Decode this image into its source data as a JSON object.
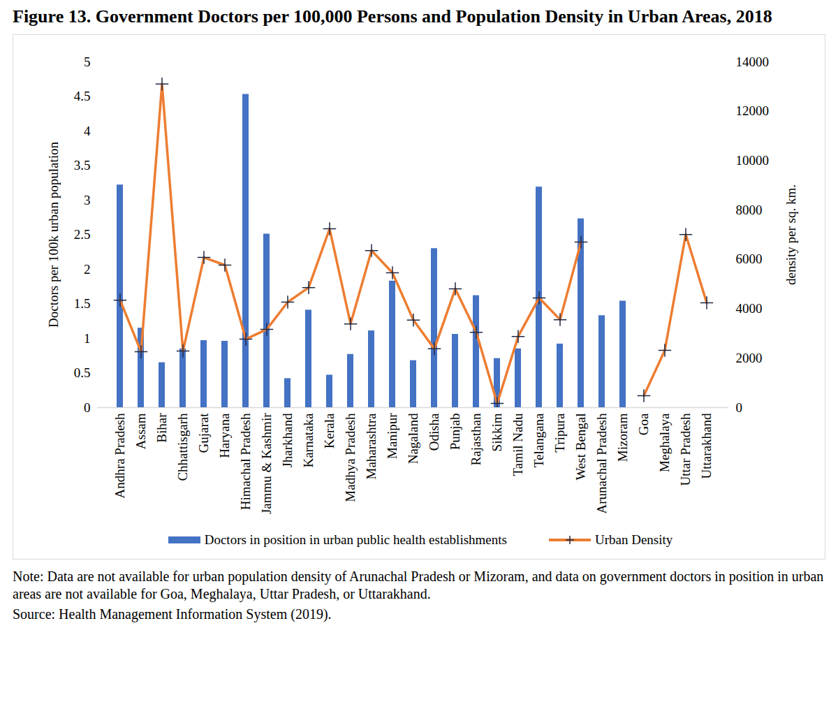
{
  "chart_data": {
    "type": "bar",
    "title": "Figure 13. Government Doctors per 100,000 Persons and Population Density in Urban Areas, 2018",
    "note": "Note: Data are not available for urban population density of Arunachal Pradesh or Mizoram, and data on government doctors in position in urban areas are not available for Goa, Meghalaya, Uttar Pradesh, or Uttarakhand.",
    "source": "Source: Health Management Information System (2019).",
    "categories": [
      "Andhra Pradesh",
      "Assam",
      "Bihar",
      "Chhattisgarh",
      "Gujarat",
      "Haryana",
      "Himachal Pradesh",
      "Jammu & Kashmir",
      "Jharkhand",
      "Karnataka",
      "Kerala",
      "Madhya Pradesh",
      "Maharashtra",
      "Manipur",
      "Nagaland",
      "Odisha",
      "Punjab",
      "Rajasthan",
      "Sikkim",
      "Tamil Nadu",
      "Telangana",
      "Tripura",
      "West Bengal",
      "Arunachal Pradesh",
      "Mizoram",
      "Goa",
      "Meghalaya",
      "Uttar Pradesh",
      "Uttarakhand"
    ],
    "series": [
      {
        "name": "Doctors in position in urban public health establishments",
        "type": "bar",
        "color": "#4472c4",
        "values": [
          3.22,
          1.15,
          0.65,
          0.85,
          0.97,
          0.96,
          4.53,
          2.51,
          0.42,
          1.41,
          0.47,
          0.77,
          1.11,
          1.83,
          0.68,
          2.3,
          1.06,
          1.62,
          0.71,
          0.85,
          3.19,
          0.92,
          2.73,
          1.33,
          1.54,
          null,
          null,
          null,
          null
        ]
      },
      {
        "name": "Urban Density",
        "type": "line",
        "color": "#ed7d31",
        "marker": "plus",
        "axis": "y2",
        "values": [
          4350,
          2260,
          13100,
          2290,
          6080,
          5770,
          2770,
          3170,
          4270,
          4860,
          7240,
          3390,
          6360,
          5460,
          3540,
          2380,
          4810,
          3050,
          170,
          2880,
          4440,
          3560,
          6700,
          null,
          null,
          480,
          2320,
          7010,
          4240
        ]
      }
    ],
    "ylabel": "Doctors per 100k urban population",
    "y2label": "density per sq. km.",
    "ylim": [
      0,
      5
    ],
    "yticks": [
      0,
      0.5,
      1,
      1.5,
      2,
      2.5,
      3,
      3.5,
      4,
      4.5,
      5
    ],
    "y2lim": [
      0,
      14000
    ],
    "y2ticks": [
      0,
      2000,
      4000,
      6000,
      8000,
      10000,
      12000,
      14000
    ],
    "grid": false,
    "legend": "bottom"
  }
}
